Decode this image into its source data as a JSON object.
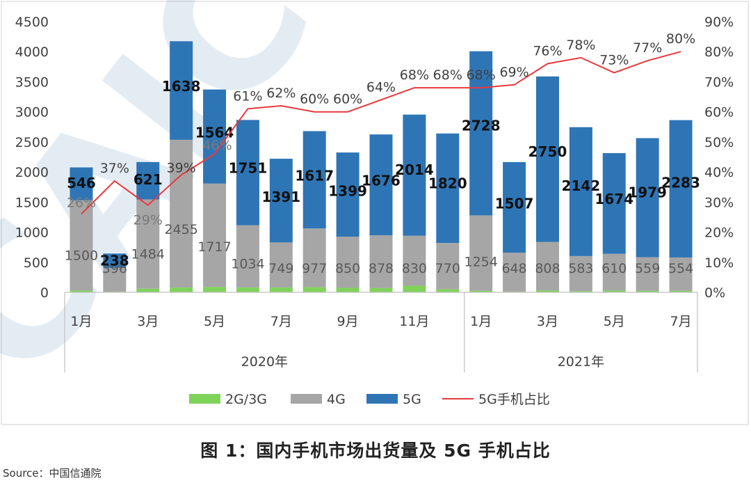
{
  "caption": "图 1：国内手机市场出货量及 5G 手机占比",
  "source": "Source：中国信通院",
  "watermark": "CAICT",
  "colors": {
    "g23": "#7fd35a",
    "g4": "#a6a6a6",
    "g5": "#2e75b6",
    "ratio": "#e8383d",
    "grid": "#d9d9d9",
    "axis": "#595959"
  },
  "chart_data": {
    "type": "bar",
    "stacked": true,
    "categories": [
      "2020-1月",
      "2020-2月",
      "2020-3月",
      "2020-4月",
      "2020-5月",
      "2020-6月",
      "2020-7月",
      "2020-8月",
      "2020-9月",
      "2020-10月",
      "2020-11月",
      "2020-12月",
      "2021-1月",
      "2021-2月",
      "2021-3月",
      "2021-4月",
      "2021-5月",
      "2021-6月",
      "2021-7月"
    ],
    "x_tick_labels": [
      "1月",
      "",
      "3月",
      "",
      "5月",
      "",
      "7月",
      "",
      "9月",
      "",
      "11月",
      "",
      "1月",
      "",
      "3月",
      "",
      "5月",
      "",
      "7月"
    ],
    "x_group_labels": [
      {
        "label": "2020年",
        "span": 12
      },
      {
        "label": "2021年",
        "span": 7
      }
    ],
    "series": [
      {
        "name": "2G/3G",
        "axis": "left",
        "values": [
          30,
          10,
          60,
          80,
          90,
          80,
          80,
          85,
          75,
          70,
          110,
          50,
          25,
          10,
          30,
          20,
          30,
          25,
          25
        ],
        "labels": [
          "",
          "",
          "",
          "",
          "",
          "",
          "",
          "",
          "",
          "",
          "",
          "",
          "",
          "",
          "",
          "",
          "",
          "",
          ""
        ]
      },
      {
        "name": "4G",
        "axis": "left",
        "values": [
          1500,
          396,
          1484,
          2455,
          1717,
          1034,
          749,
          977,
          850,
          878,
          830,
          770,
          1254,
          648,
          808,
          583,
          610,
          559,
          554
        ],
        "labels": [
          "1500",
          "396",
          "1484",
          "2455",
          "1717",
          "1034",
          "749",
          "977",
          "850",
          "878",
          "830",
          "770",
          "1254",
          "648",
          "808",
          "583",
          "610",
          "559",
          "554"
        ]
      },
      {
        "name": "5G",
        "axis": "left",
        "values": [
          546,
          238,
          621,
          1638,
          1564,
          1751,
          1391,
          1617,
          1399,
          1676,
          2014,
          1820,
          2728,
          1507,
          2750,
          2142,
          1674,
          1979,
          2283
        ],
        "labels": [
          "546",
          "238",
          "621",
          "1638",
          "1564",
          "1751",
          "1391",
          "1617",
          "1399",
          "1676",
          "2014",
          "1820",
          "2728",
          "1507",
          "2750",
          "2142",
          "1674",
          "1979",
          "2283"
        ]
      },
      {
        "name": "5G手机占比",
        "type": "line",
        "axis": "right",
        "values": [
          26,
          37,
          29,
          39,
          46,
          61,
          62,
          60,
          60,
          64,
          68,
          68,
          68,
          69,
          76,
          78,
          73,
          77,
          80
        ],
        "labels": [
          "26%",
          "37%",
          "29%",
          "39%",
          "46%",
          "61%",
          "62%",
          "60%",
          "60%",
          "64%",
          "68%",
          "68%",
          "68%",
          "69%",
          "76%",
          "78%",
          "73%",
          "77%",
          "80%"
        ]
      }
    ],
    "y_left": {
      "ylim": [
        0,
        4500
      ],
      "ticks": [
        "0",
        "500",
        "1000",
        "1500",
        "2000",
        "2500",
        "3000",
        "3500",
        "4000",
        "4500"
      ]
    },
    "y_right": {
      "ylim": [
        0,
        90
      ],
      "ticks": [
        "0%",
        "10%",
        "20%",
        "30%",
        "40%",
        "50%",
        "60%",
        "70%",
        "80%",
        "90%"
      ]
    },
    "legend": {
      "position": "bottom",
      "items": [
        "2G/3G",
        "4G",
        "5G",
        "5G手机占比"
      ]
    },
    "grid": false
  }
}
